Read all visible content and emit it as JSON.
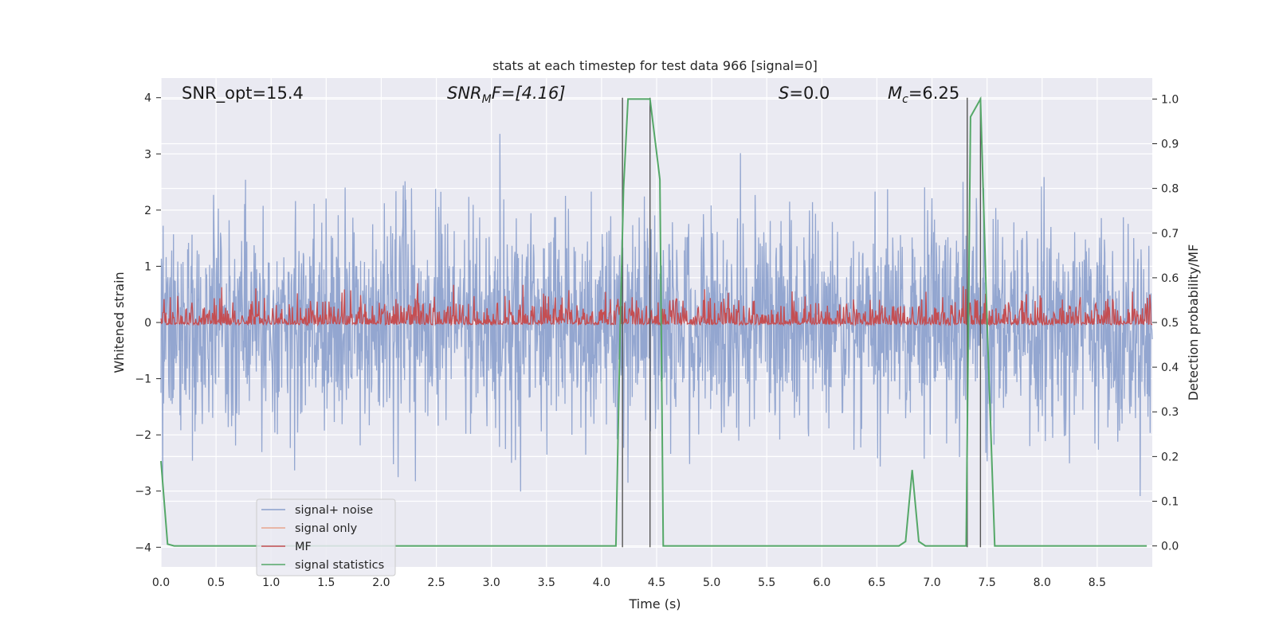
{
  "chart_data": {
    "type": "line",
    "title": "stats at each timestep for test data 966 [signal=0]",
    "xlabel": "Time (s)",
    "ylabel_left": "Whitened strain",
    "ylabel_right": "Detection probability/MF",
    "xlim": [
      0.0,
      9.0
    ],
    "ylim_left": [
      -4.35,
      4.35
    ],
    "ylim_right": [
      -0.047,
      1.047
    ],
    "x_ticks": [
      "0.0",
      "0.5",
      "1.0",
      "1.5",
      "2.0",
      "2.5",
      "3.0",
      "3.5",
      "4.0",
      "4.5",
      "5.0",
      "5.5",
      "6.0",
      "6.5",
      "7.0",
      "7.5",
      "8.0",
      "8.5"
    ],
    "y_ticks_left": [
      "4",
      "3",
      "2",
      "1",
      "0",
      "−1",
      "−2",
      "−3",
      "−4"
    ],
    "y_ticks_right": [
      "1.0",
      "0.9",
      "0.8",
      "0.7",
      "0.6",
      "0.5",
      "0.4",
      "0.3",
      "0.2",
      "0.1",
      "0.0"
    ],
    "grid": true,
    "legend_position": "lower-left",
    "annotations": {
      "snr_opt": "SNR_opt=15.4",
      "snr_mf_sym": "SNR",
      "snr_mf_sub": "M",
      "snr_mf_rest": "F=[4.16]",
      "s_sym": "S",
      "s_rest": "=0.0",
      "mc_sym": "M",
      "mc_sub": "c",
      "mc_rest": "=6.25"
    },
    "vertical_lines_x": [
      4.19,
      4.44,
      7.32,
      7.44
    ],
    "series": [
      {
        "name": "signal+ noise",
        "color": "#8a9fcc",
        "axis": "left",
        "description_values": {
          "min": -3.4,
          "max": 3.5,
          "typical_abs_max": 2.3
        }
      },
      {
        "name": "signal only",
        "color": "#e8a58c",
        "axis": "left",
        "values": []
      },
      {
        "name": "MF",
        "color": "#c44e52",
        "axis": "right",
        "description_values": {
          "baseline": 0.5,
          "max": 0.61
        }
      },
      {
        "name": "signal statistics",
        "color": "#55a868",
        "axis": "right",
        "x": [
          0.0,
          0.06,
          0.12,
          0.2,
          4.0,
          4.13,
          4.17,
          4.2,
          4.24,
          4.3,
          4.44,
          4.49,
          4.53,
          4.56,
          4.6,
          6.7,
          6.76,
          6.82,
          6.88,
          6.94,
          7.0,
          7.31,
          7.35,
          7.44,
          7.5,
          7.57,
          7.65,
          8.95
        ],
        "y": [
          0.19,
          0.004,
          0.0,
          0.0,
          0.0,
          0.0,
          0.5,
          0.8,
          1.0,
          1.0,
          1.0,
          0.9,
          0.82,
          0.0,
          0.0,
          0.0,
          0.01,
          0.17,
          0.01,
          0.0,
          0.0,
          0.0,
          0.96,
          1.0,
          0.5,
          0.0,
          0.0,
          0.0
        ]
      }
    ]
  }
}
